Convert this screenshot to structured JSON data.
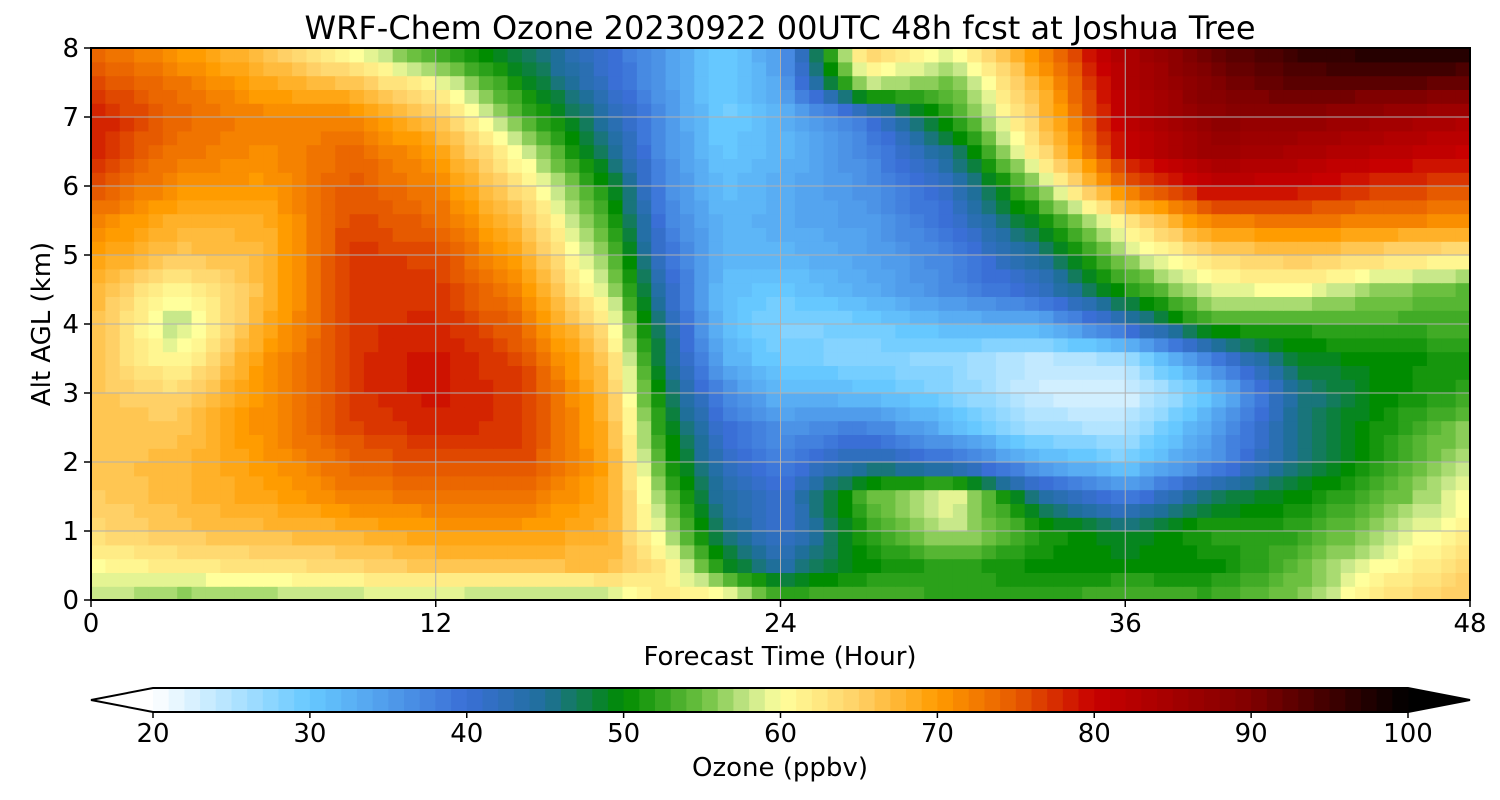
{
  "chart_data": {
    "type": "heatmap",
    "title": "WRF-Chem Ozone  20230922 00UTC 48h fcst at Joshua Tree",
    "xlabel": "Forecast Time (Hour)",
    "ylabel": "Alt AGL (km)",
    "xlim": [
      0,
      48
    ],
    "ylim": [
      0,
      8
    ],
    "x_ticks": [
      0,
      12,
      24,
      36,
      48
    ],
    "y_ticks": [
      0,
      1,
      2,
      3,
      4,
      5,
      6,
      7,
      8
    ],
    "grid": true,
    "x": [
      0,
      3,
      6,
      9,
      12,
      15,
      18,
      20,
      22,
      24,
      27,
      30,
      33,
      36,
      39,
      42,
      45,
      48
    ],
    "y": [
      0,
      0.5,
      1,
      1.5,
      2,
      2.5,
      3,
      3.5,
      4,
      4.5,
      5,
      5.5,
      6,
      6.5,
      7,
      7.5,
      8
    ],
    "z": [
      [
        58,
        55,
        56,
        57,
        57,
        56,
        56,
        62,
        62,
        54,
        54,
        52,
        52,
        54,
        53,
        56,
        63,
        66
      ],
      [
        60,
        62,
        63,
        64,
        66,
        66,
        67,
        62,
        50,
        44,
        50,
        52,
        50,
        50,
        50,
        54,
        60,
        64
      ],
      [
        64,
        66,
        67,
        68,
        70,
        70,
        68,
        58,
        46,
        40,
        52,
        58,
        52,
        48,
        52,
        52,
        57,
        62
      ],
      [
        65,
        67,
        69,
        72,
        73,
        73,
        69,
        55,
        44,
        40,
        54,
        60,
        45,
        38,
        47,
        50,
        54,
        60
      ],
      [
        66,
        67,
        70,
        74,
        76,
        76,
        69,
        52,
        42,
        38,
        44,
        40,
        33,
        29,
        36,
        46,
        52,
        58
      ],
      [
        66,
        66,
        71,
        76,
        78,
        77,
        68,
        50,
        40,
        36,
        38,
        32,
        26,
        25,
        34,
        46,
        51,
        56
      ],
      [
        66,
        64,
        71,
        77,
        79,
        77,
        67,
        48,
        37,
        32,
        31,
        28,
        23,
        22,
        30,
        45,
        50,
        52
      ],
      [
        66,
        60,
        70,
        77,
        79,
        76,
        65,
        46,
        33,
        29,
        28,
        27,
        24,
        26,
        38,
        49,
        50,
        51
      ],
      [
        67,
        57,
        68,
        77,
        78,
        74,
        62,
        44,
        31,
        28,
        29,
        32,
        33,
        42,
        53,
        52,
        53,
        53
      ],
      [
        68,
        60,
        67,
        77,
        77,
        71,
        58,
        42,
        31,
        30,
        33,
        37,
        41,
        51,
        59,
        60,
        56,
        54
      ],
      [
        70,
        66,
        67,
        77,
        76,
        69,
        55,
        40,
        32,
        32,
        34,
        38,
        45,
        57,
        64,
        66,
        64,
        62
      ],
      [
        72,
        68,
        68,
        76,
        74,
        66,
        53,
        38,
        32,
        33,
        35,
        40,
        50,
        62,
        72,
        73,
        72,
        71
      ],
      [
        76,
        71,
        70,
        75,
        72,
        63,
        50,
        37,
        31,
        33,
        36,
        42,
        56,
        74,
        81,
        80,
        77,
        76
      ],
      [
        78,
        73,
        71,
        74,
        70,
        59,
        46,
        36,
        30,
        32,
        37,
        46,
        63,
        80,
        86,
        84,
        82,
        80
      ],
      [
        79,
        74,
        72,
        72,
        66,
        54,
        44,
        36,
        29,
        32,
        39,
        52,
        66,
        82,
        88,
        88,
        86,
        84
      ],
      [
        76,
        73,
        69,
        66,
        60,
        50,
        41,
        35,
        29,
        34,
        58,
        55,
        68,
        83,
        90,
        93,
        93,
        92
      ],
      [
        74,
        70,
        66,
        59,
        52,
        47,
        40,
        35,
        29,
        35,
        66,
        60,
        72,
        84,
        92,
        96,
        98,
        98
      ]
    ],
    "colorbar": {
      "label": "Ozone  (ppbv)",
      "min": 20,
      "max": 100,
      "ticks": [
        20,
        30,
        40,
        50,
        60,
        70,
        80,
        90,
        100
      ],
      "extend": "both",
      "stops": [
        {
          "v": 20,
          "c": "#ffffff"
        },
        {
          "v": 30,
          "c": "#66c8ff"
        },
        {
          "v": 40,
          "c": "#3a6fd6"
        },
        {
          "v": 45,
          "c": "#1f6f9a"
        },
        {
          "v": 50,
          "c": "#008c00"
        },
        {
          "v": 55,
          "c": "#6cc040"
        },
        {
          "v": 58,
          "c": "#c8e88a"
        },
        {
          "v": 60,
          "c": "#ffff9c"
        },
        {
          "v": 65,
          "c": "#ffd066"
        },
        {
          "v": 70,
          "c": "#ff9c00"
        },
        {
          "v": 75,
          "c": "#e65a00"
        },
        {
          "v": 80,
          "c": "#c80000"
        },
        {
          "v": 90,
          "c": "#800000"
        },
        {
          "v": 100,
          "c": "#000000"
        }
      ]
    }
  }
}
